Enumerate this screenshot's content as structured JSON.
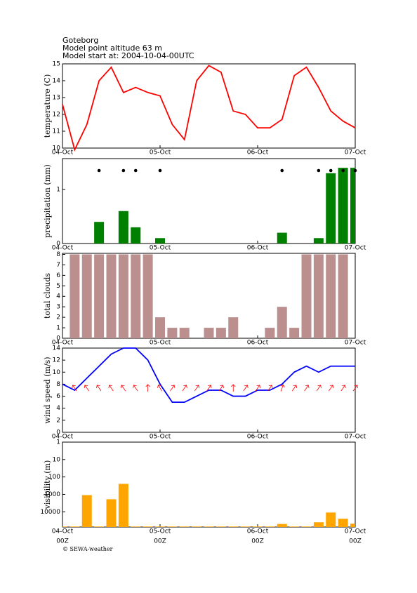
{
  "header": {
    "lines": [
      "Goteborg",
      "Model point altitude  63 m",
      "Model start at: 2004-10-04-00UTC"
    ]
  },
  "footer": "© SEWA-weather",
  "chart_data": [
    {
      "type": "line",
      "ylabel": "temperature (C)",
      "x": [
        0,
        3,
        6,
        9,
        12,
        15,
        18,
        21,
        24,
        27,
        30,
        33,
        36,
        39,
        42,
        45,
        48,
        51,
        54,
        57,
        60,
        63,
        66,
        69,
        72
      ],
      "xlim": [
        0,
        72
      ],
      "xticks": [
        {
          "value": 0,
          "label": "04-Oct"
        },
        {
          "value": 24,
          "label": "05-Oct"
        },
        {
          "value": 48,
          "label": "06-Oct"
        },
        {
          "value": 72,
          "label": "07-Oct"
        }
      ],
      "ylim": [
        10,
        15
      ],
      "yticks": [
        10,
        11,
        12,
        13,
        14,
        15
      ],
      "series": [
        {
          "color": "#ff0000",
          "values": [
            12.6,
            9.9,
            11.4,
            14.0,
            14.8,
            13.3,
            13.6,
            13.3,
            13.1,
            11.4,
            10.5,
            14.0,
            14.9,
            14.5,
            12.2,
            12.0,
            11.2,
            11.2,
            11.7,
            14.3,
            14.8,
            13.6,
            12.2,
            11.6,
            11.2
          ]
        }
      ]
    },
    {
      "type": "bar",
      "ylabel": "precipitation (mm)",
      "x": [
        0,
        3,
        6,
        9,
        12,
        15,
        18,
        21,
        24,
        27,
        30,
        33,
        36,
        39,
        42,
        45,
        48,
        51,
        54,
        57,
        60,
        63,
        66,
        69,
        72
      ],
      "xlim": [
        0,
        72
      ],
      "xticks": [
        {
          "value": 0,
          "label": "04-Oct"
        },
        {
          "value": 24,
          "label": "05-Oct"
        },
        {
          "value": 48,
          "label": "06-Oct"
        },
        {
          "value": 72,
          "label": "07-Oct"
        }
      ],
      "ylim": [
        0,
        1.57
      ],
      "yticks": [
        0,
        1
      ],
      "markers": true,
      "series": [
        {
          "color": "#008000",
          "values": [
            0,
            0,
            0,
            0.4,
            0,
            0.6,
            0.3,
            0,
            0.1,
            0,
            0,
            0,
            0,
            0,
            0,
            0,
            0,
            0,
            0.2,
            0,
            0,
            0.1,
            1.3,
            1.4,
            1.4
          ]
        }
      ]
    },
    {
      "type": "bar",
      "ylabel": "total clouds",
      "x": [
        0,
        3,
        6,
        9,
        12,
        15,
        18,
        21,
        24,
        27,
        30,
        33,
        36,
        39,
        42,
        45,
        48,
        51,
        54,
        57,
        60,
        63,
        66,
        69,
        72
      ],
      "xlim": [
        0,
        72
      ],
      "xticks": [
        {
          "value": 0,
          "label": "04-Oct"
        },
        {
          "value": 24,
          "label": "05-Oct"
        },
        {
          "value": 48,
          "label": "06-Oct"
        },
        {
          "value": 72,
          "label": "07-Oct"
        }
      ],
      "ylim": [
        0,
        8.1
      ],
      "yticks": [
        0,
        1,
        2,
        3,
        4,
        5,
        6,
        7,
        8
      ],
      "series": [
        {
          "color": "#bc8f8f",
          "values": [
            0,
            8,
            8,
            8,
            8,
            8,
            8,
            8,
            2,
            1,
            1,
            0,
            1,
            1,
            2,
            0,
            0,
            1,
            3,
            1,
            8,
            8,
            8,
            8,
            0
          ]
        }
      ]
    },
    {
      "type": "line",
      "ylabel": "wind speed (m/s)",
      "x": [
        0,
        3,
        6,
        9,
        12,
        15,
        18,
        21,
        24,
        27,
        30,
        33,
        36,
        39,
        42,
        45,
        48,
        51,
        54,
        57,
        60,
        63,
        66,
        69,
        72
      ],
      "xlim": [
        0,
        72
      ],
      "xticks": [
        {
          "value": 0,
          "label": "04-Oct"
        },
        {
          "value": 24,
          "label": "05-Oct"
        },
        {
          "value": 48,
          "label": "06-Oct"
        },
        {
          "value": 72,
          "label": "07-Oct"
        }
      ],
      "ylim": [
        0,
        14
      ],
      "yticks": [
        0,
        2,
        4,
        6,
        8,
        10,
        12,
        14
      ],
      "series": [
        {
          "color": "#0000ff",
          "values": [
            8,
            7,
            9,
            11,
            13,
            14,
            14,
            12,
            8,
            5,
            5,
            6,
            7,
            7,
            6,
            6,
            7,
            7,
            8,
            10,
            11,
            10,
            11,
            11,
            11
          ]
        }
      ],
      "arrow_color": "#ff0000",
      "arrow_directions": [
        null,
        -35,
        -35,
        -35,
        -35,
        -35,
        -35,
        0,
        -30,
        35,
        35,
        35,
        35,
        35,
        0,
        35,
        35,
        35,
        20,
        35,
        35,
        35,
        35,
        35,
        35
      ]
    },
    {
      "type": "bar",
      "ylabel": "visibility (m)",
      "log": true,
      "invert": true,
      "x": [
        0,
        3,
        6,
        9,
        12,
        15,
        18,
        21,
        24,
        27,
        30,
        33,
        36,
        39,
        42,
        45,
        48,
        51,
        54,
        57,
        60,
        63,
        66,
        69,
        72
      ],
      "xlim": [
        0,
        72
      ],
      "xticks": [
        {
          "value": 0,
          "label": "04-Oct"
        },
        {
          "value": 24,
          "label": "05-Oct"
        },
        {
          "value": 48,
          "label": "06-Oct"
        },
        {
          "value": 72,
          "label": "07-Oct"
        }
      ],
      "xticks_utc": [
        {
          "value": 0,
          "label": "00Z"
        },
        {
          "value": 24,
          "label": "00Z"
        },
        {
          "value": 48,
          "label": "00Z"
        },
        {
          "value": 72,
          "label": "00Z"
        }
      ],
      "ylim": [
        1,
        75000
      ],
      "yticks": [
        1,
        10,
        100,
        1000,
        10000
      ],
      "series": [
        {
          "color": "#ffa500",
          "values": [
            70000,
            70000,
            1100,
            70000,
            1900,
            250,
            70000,
            70000,
            70000,
            70000,
            70000,
            70000,
            70000,
            70000,
            70000,
            70000,
            70000,
            70000,
            50000,
            70000,
            70000,
            40000,
            11000,
            25000,
            48000
          ]
        }
      ]
    }
  ]
}
